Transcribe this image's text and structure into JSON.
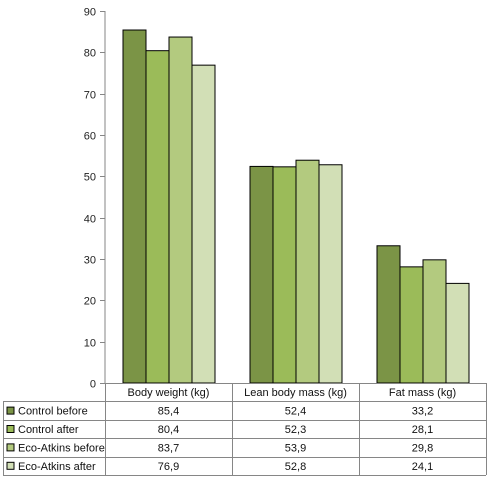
{
  "chart_data": {
    "type": "bar",
    "categories": [
      "Body weight (kg)",
      "Lean body mass (kg)",
      "Fat mass (kg)"
    ],
    "series": [
      {
        "name": "Control before",
        "values": [
          85.4,
          52.4,
          33.2
        ],
        "color": "#7b9446"
      },
      {
        "name": "Control after",
        "values": [
          80.4,
          52.3,
          28.1
        ],
        "color": "#9bbb59"
      },
      {
        "name": "Eco-Atkins before",
        "values": [
          83.7,
          53.9,
          29.8
        ],
        "color": "#b3ca7f"
      },
      {
        "name": "Eco-Atkins after",
        "values": [
          76.9,
          52.8,
          24.1
        ],
        "color": "#d2dfb6"
      }
    ],
    "table_values": [
      [
        "85,4",
        "52,4",
        "33,2"
      ],
      [
        "80,4",
        "52,3",
        "28,1"
      ],
      [
        "83,7",
        "53,9",
        "29,8"
      ],
      [
        "76,9",
        "52,8",
        "24,1"
      ]
    ],
    "y_ticks": [
      "0",
      "10",
      "20",
      "30",
      "40",
      "50",
      "60",
      "70",
      "80",
      "90"
    ],
    "ylim": [
      0,
      90
    ],
    "grid": false,
    "legend": "data table below chart",
    "title": "",
    "xlabel": "",
    "ylabel": ""
  }
}
